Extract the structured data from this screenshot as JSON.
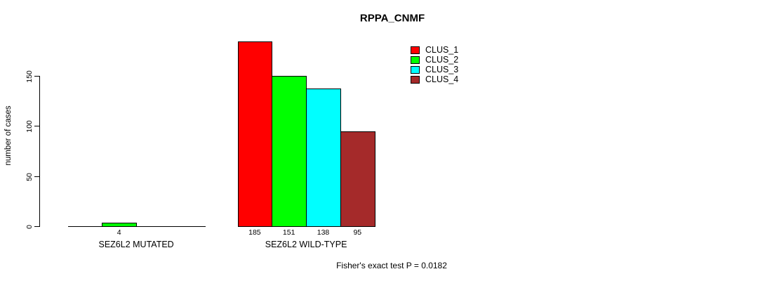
{
  "chart_data": {
    "type": "bar",
    "title": "RPPA_CNMF",
    "ylabel": "number of cases",
    "annotation": "Fisher's exact test P = 0.0182",
    "yticks": [
      0,
      50,
      100,
      150
    ],
    "ylim": [
      0,
      185
    ],
    "grid": false,
    "legend_position": "top-right",
    "value_labels": "shown under bars for nonzero values only",
    "series": [
      {
        "name": "CLUS_1",
        "color": "#FF0000"
      },
      {
        "name": "CLUS_2",
        "color": "#00FF00"
      },
      {
        "name": "CLUS_3",
        "color": "#00FFFF"
      },
      {
        "name": "CLUS_4",
        "color": "#A52A2A"
      }
    ],
    "groups": [
      {
        "label": "SEZ6L2 MUTATED",
        "values": [
          0,
          4,
          0,
          0
        ]
      },
      {
        "label": "SEZ6L2 WILD-TYPE",
        "values": [
          185,
          151,
          138,
          95
        ]
      }
    ]
  }
}
